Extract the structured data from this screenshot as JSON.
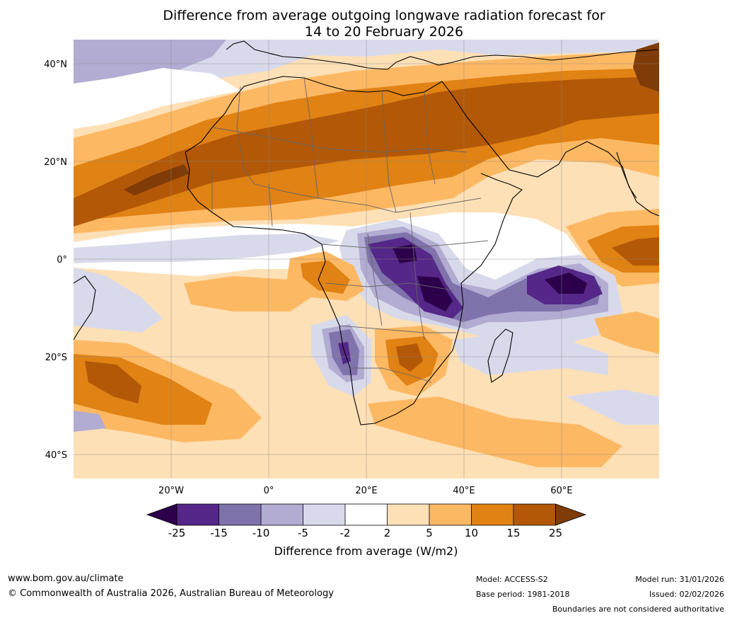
{
  "title": {
    "line1": "Difference from average outgoing longwave radiation forecast for",
    "line2": "14 to 20 February 2026"
  },
  "map": {
    "lat_ticks": [
      "40°N",
      "20°N",
      "0°",
      "20°S",
      "40°S"
    ],
    "lon_ticks": [
      "20°W",
      "0°",
      "20°E",
      "40°E",
      "60°E"
    ],
    "palette": {
      "n25": "#2d004b",
      "n15": "#542788",
      "n10": "#8073ac",
      "n5": "#b2abd2",
      "n2": "#d8daeb",
      "zero": "#ffffff",
      "p2": "#fee0b6",
      "p5": "#fdb863",
      "p10": "#e08214",
      "p15": "#b35806",
      "p25": "#7f3b08"
    }
  },
  "colorbar": {
    "ticks": [
      "-25",
      "-15",
      "-10",
      "-5",
      "-2",
      "2",
      "5",
      "10",
      "15",
      "25"
    ],
    "title": "Difference from average (W/m2)",
    "colors": [
      "#2d004b",
      "#542788",
      "#8073ac",
      "#b2abd2",
      "#d8daeb",
      "#ffffff",
      "#fee0b6",
      "#fdb863",
      "#e08214",
      "#b35806",
      "#7f3b08"
    ]
  },
  "footer": {
    "website": "www.bom.gov.au/climate",
    "copyright": "© Commonwealth of Australia 2026, Australian Bureau of Meteorology",
    "model": "Model: ACCESS-S2",
    "base_period": "Base period: 1981-2018",
    "model_run": "Model run: 31/01/2026",
    "issued": "Issued: 02/02/2026",
    "boundaries": "Boundaries are not considered authoritative"
  }
}
